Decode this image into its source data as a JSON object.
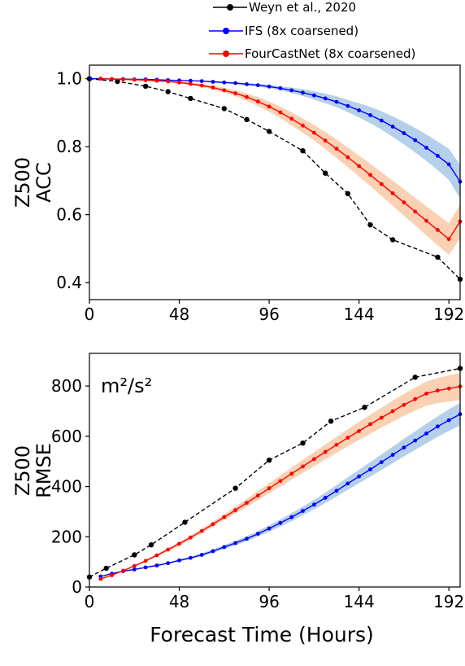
{
  "legend": [
    {
      "name": "Weyn et al., 2020",
      "color": "#000000",
      "style": "dashed"
    },
    {
      "name": "IFS (8x coarsened)",
      "color": "#0000ff",
      "style": "solid"
    },
    {
      "name": "FourCastNet (8x coarsened)",
      "color": "#ff0000",
      "style": "solid"
    }
  ],
  "shared_xlabel": "Forecast Time (Hours)",
  "chart_data": [
    {
      "type": "line",
      "ylabel_line1": "Z500",
      "ylabel_line2": "ACC",
      "xlim": [
        0,
        198
      ],
      "ylim": [
        0.35,
        1.04
      ],
      "xticks": [
        0,
        48,
        96,
        144,
        192
      ],
      "xtick_labels": [
        "0",
        "48",
        "96",
        "144",
        "192"
      ],
      "yticks": [
        1.0,
        0.8,
        0.6,
        0.4
      ],
      "ytick_labels": [
        "1.0",
        "0.8",
        "0.6",
        "0.4"
      ],
      "series": [
        {
          "name": "Weyn et al., 2020",
          "color": "#000000",
          "dash": true,
          "marker_size": 3.2,
          "x": [
            0,
            15,
            30,
            42,
            54,
            72,
            84,
            96,
            114,
            126,
            138,
            150,
            162,
            186,
            198
          ],
          "y": [
            1.0,
            0.992,
            0.978,
            0.962,
            0.942,
            0.912,
            0.88,
            0.845,
            0.788,
            0.722,
            0.662,
            0.57,
            0.526,
            0.475,
            0.41
          ],
          "band": null
        },
        {
          "name": "IFS (8x coarsened)",
          "color": "#0000ff",
          "dash": false,
          "marker_size": 2.4,
          "x": [
            0,
            6,
            12,
            18,
            24,
            30,
            36,
            42,
            48,
            54,
            60,
            66,
            72,
            78,
            84,
            90,
            96,
            102,
            108,
            114,
            120,
            126,
            132,
            138,
            144,
            150,
            156,
            162,
            168,
            174,
            180,
            186,
            192,
            198
          ],
          "y": [
            1.0,
            1.0,
            0.999,
            0.999,
            0.998,
            0.998,
            0.997,
            0.996,
            0.995,
            0.994,
            0.993,
            0.991,
            0.989,
            0.987,
            0.984,
            0.981,
            0.977,
            0.972,
            0.966,
            0.959,
            0.951,
            0.942,
            0.932,
            0.92,
            0.907,
            0.893,
            0.877,
            0.859,
            0.84,
            0.819,
            0.797,
            0.773,
            0.748,
            0.697
          ],
          "band": [
            0.0,
            0.0,
            0.0,
            0.0,
            0.0,
            0.0,
            0.0,
            0.0,
            0.001,
            0.001,
            0.001,
            0.002,
            0.002,
            0.003,
            0.003,
            0.004,
            0.005,
            0.006,
            0.008,
            0.01,
            0.012,
            0.014,
            0.016,
            0.018,
            0.021,
            0.024,
            0.027,
            0.03,
            0.033,
            0.036,
            0.039,
            0.042,
            0.046,
            0.05
          ]
        },
        {
          "name": "FourCastNet (8x coarsened)",
          "color": "#ff0000",
          "dash": false,
          "marker_size": 2.4,
          "x": [
            6,
            12,
            18,
            24,
            30,
            36,
            42,
            48,
            54,
            60,
            66,
            72,
            78,
            84,
            90,
            96,
            102,
            108,
            114,
            120,
            126,
            132,
            138,
            144,
            150,
            156,
            162,
            168,
            174,
            180,
            186,
            192,
            198
          ],
          "y": [
            1.0,
            0.999,
            0.998,
            0.997,
            0.996,
            0.994,
            0.992,
            0.989,
            0.985,
            0.98,
            0.974,
            0.966,
            0.957,
            0.946,
            0.933,
            0.918,
            0.901,
            0.882,
            0.862,
            0.841,
            0.818,
            0.794,
            0.769,
            0.743,
            0.717,
            0.69,
            0.663,
            0.636,
            0.609,
            0.582,
            0.555,
            0.528,
            0.58
          ],
          "band": [
            0.0,
            0.0,
            0.0,
            0.0,
            0.001,
            0.001,
            0.002,
            0.003,
            0.004,
            0.005,
            0.006,
            0.007,
            0.009,
            0.011,
            0.013,
            0.015,
            0.017,
            0.019,
            0.021,
            0.023,
            0.025,
            0.027,
            0.029,
            0.031,
            0.033,
            0.035,
            0.037,
            0.039,
            0.041,
            0.043,
            0.045,
            0.047,
            0.05
          ]
        }
      ]
    },
    {
      "type": "line",
      "ylabel_line1": "Z500",
      "ylabel_line2": "RMSE",
      "annotation": "m²/s²",
      "xlim": [
        0,
        198
      ],
      "ylim": [
        0,
        930
      ],
      "xticks": [
        0,
        48,
        96,
        144,
        192
      ],
      "xtick_labels": [
        "0",
        "48",
        "96",
        "144",
        "192"
      ],
      "yticks": [
        0,
        200,
        400,
        600,
        800
      ],
      "ytick_labels": [
        "0",
        "200",
        "400",
        "600",
        "800"
      ],
      "series": [
        {
          "name": "Weyn et al., 2020",
          "color": "#000000",
          "dash": true,
          "marker_size": 3.2,
          "x": [
            0,
            9,
            24,
            33,
            51,
            78,
            96,
            114,
            129,
            147,
            174,
            198
          ],
          "y": [
            40,
            75,
            128,
            168,
            258,
            393,
            505,
            573,
            660,
            715,
            835,
            870
          ],
          "band": null
        },
        {
          "name": "IFS (8x coarsened)",
          "color": "#0000ff",
          "dash": false,
          "marker_size": 2.4,
          "x": [
            6,
            12,
            18,
            24,
            30,
            36,
            42,
            48,
            54,
            60,
            66,
            72,
            78,
            84,
            90,
            96,
            102,
            108,
            114,
            120,
            126,
            132,
            138,
            144,
            150,
            156,
            162,
            168,
            174,
            180,
            186,
            192,
            198
          ],
          "y": [
            42,
            53,
            63,
            70,
            78,
            86,
            95,
            106,
            116,
            128,
            143,
            159,
            175,
            192,
            212,
            233,
            255,
            278,
            303,
            328,
            355,
            383,
            412,
            440,
            468,
            497,
            526,
            555,
            583,
            611,
            639,
            664,
            688
          ],
          "band": [
            0,
            1,
            1,
            2,
            2,
            3,
            3,
            4,
            5,
            6,
            7,
            8,
            9,
            10,
            11,
            13,
            14,
            16,
            17,
            19,
            21,
            23,
            25,
            27,
            29,
            31,
            33,
            35,
            37,
            39,
            41,
            43,
            45
          ]
        },
        {
          "name": "FourCastNet (8x coarsened)",
          "color": "#ff0000",
          "dash": false,
          "marker_size": 2.4,
          "x": [
            6,
            12,
            18,
            24,
            30,
            36,
            42,
            48,
            54,
            60,
            66,
            72,
            78,
            84,
            90,
            96,
            102,
            108,
            114,
            120,
            126,
            132,
            138,
            144,
            150,
            156,
            162,
            168,
            174,
            180,
            186,
            192,
            198
          ],
          "y": [
            32,
            47,
            65,
            84,
            104,
            126,
            149,
            172,
            197,
            223,
            250,
            278,
            306,
            335,
            364,
            393,
            422,
            451,
            480,
            509,
            538,
            566,
            594,
            621,
            648,
            674,
            700,
            725,
            748,
            770,
            782,
            790,
            798
          ],
          "band": [
            0,
            1,
            2,
            3,
            4,
            5,
            6,
            7,
            8,
            9,
            10,
            12,
            14,
            16,
            18,
            20,
            22,
            24,
            26,
            28,
            30,
            32,
            34,
            36,
            38,
            40,
            42,
            44,
            46,
            48,
            50,
            52,
            54
          ]
        }
      ]
    }
  ]
}
